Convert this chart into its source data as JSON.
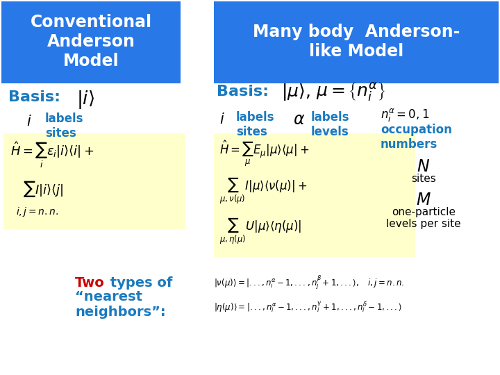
{
  "bg_color": "#ffffff",
  "blue_header_color": "#2878e8",
  "yellow_bg_color": "#ffffcc",
  "header_text_color": "#ffffff",
  "cyan_text_color": "#1a7abf",
  "red_text_color": "#cc0000",
  "black_text_color": "#000000",
  "left_header": "Conventional\nAnderson\nModel",
  "right_header": "Many body  Anderson-\nlike Model",
  "basis_label_left": "Basis:",
  "basis_ket_left": "$|i\\rangle$",
  "i_label": "$i$",
  "labels_sites_left": "labels\nsites",
  "hamilton_left_line1": "$\\hat{H} = \\sum_i \\varepsilon_i |i\\rangle\\langle i| +$",
  "hamilton_left_line2": "$\\sum I |i\\rangle\\langle j|$",
  "hamilton_left_sub": "$i,j=n.n.$",
  "basis_label_right": "Basis:",
  "basis_ket_right": "$|\\mu\\rangle,$",
  "basis_mu_right": "$\\mu = \\left\\{n_i^\\alpha\\right\\}$",
  "i_label_right": "$i$",
  "labels_sites_right": "labels\nsites",
  "alpha_label": "$\\alpha$",
  "labels_levels_right": "labels\nlevels",
  "occupation_formula": "$n_i^\\alpha = 0,1$",
  "occupation_text": "occupation\nnumbers",
  "N_label": "$N$",
  "sites_label": "sites",
  "M_label": "$M$",
  "one_particle_text": "one-particle\nlevels per site",
  "hamilton_right_line1": "$\\hat{H} = \\sum_\\mu E_\\mu |\\mu\\rangle\\langle\\mu| +$",
  "hamilton_right_line2": "$\\sum_{\\mu,\\nu(\\mu)} I|\\mu\\rangle\\langle\\nu(\\mu)| +$",
  "hamilton_right_line3": "$\\sum_{\\mu,\\eta(\\mu)} U|\\mu\\rangle\\langle\\eta(\\mu)|$",
  "two_types_red": "Two",
  "two_types_blue": " types of",
  "nearest_neighbors": "“nearest\nneighbors”:",
  "nu_ket": "$|\\nu(\\mu)\\rangle = |..., n_i^\\alpha - 1,..., n_j^\\beta + 1,...\\rangle,\\quad i,j = n.n.$",
  "eta_ket": "$|\\eta(\\mu)\\rangle = |..., n_i^\\alpha - 1,..., n_i^\\gamma + 1,..., n_i^\\delta - 1,...\\rangle$"
}
